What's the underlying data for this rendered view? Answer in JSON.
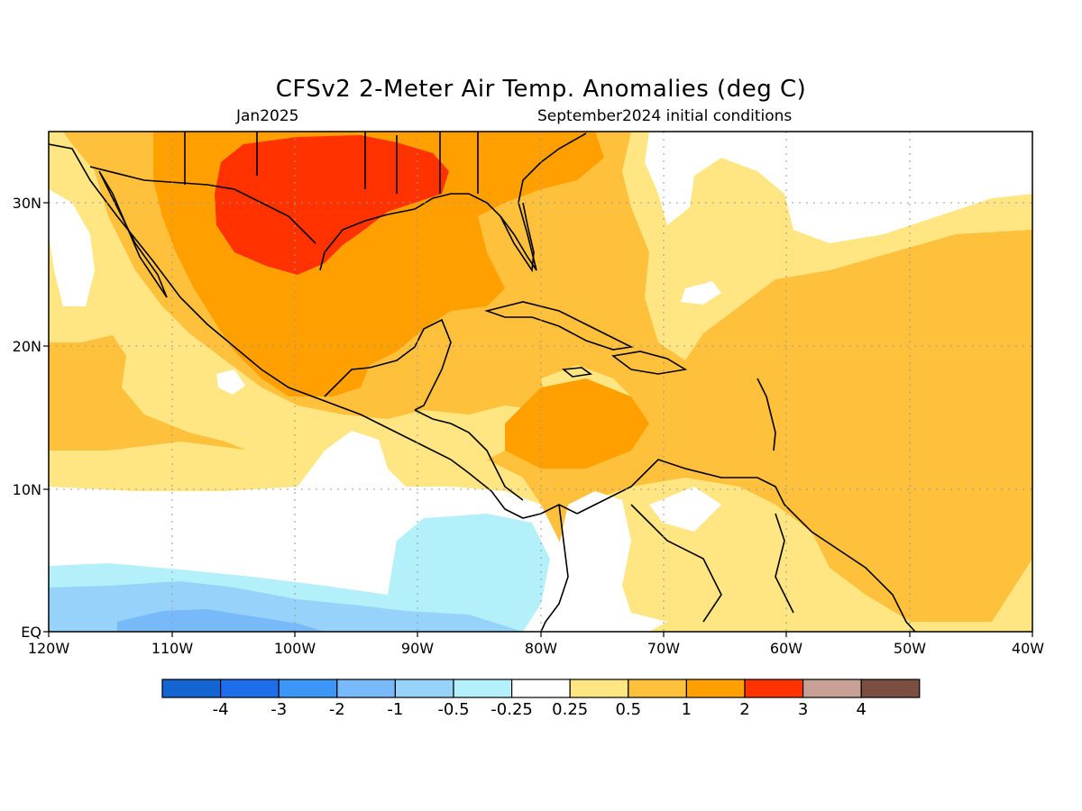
{
  "title": "CFSv2 2-Meter Air Temp. Anomalies (deg C)",
  "subtitle_left": "Jan2025",
  "subtitle_right": "September2024 initial conditions",
  "lat_labels": [
    "30N",
    "20N",
    "10N",
    "EQ"
  ],
  "lon_labels": [
    "120W",
    "110W",
    "100W",
    "90W",
    "80W",
    "70W",
    "60W",
    "50W",
    "40W"
  ],
  "colorbar": {
    "colors": [
      "#1464d2",
      "#1e6eeb",
      "#3c96f5",
      "#78b9fa",
      "#96d2fa",
      "#b4f0fa",
      "#ffffff",
      "#ffe682",
      "#ffc03c",
      "#ffa000",
      "#ff3200",
      "#c8a096",
      "#7a4e40"
    ],
    "labels": [
      "-4",
      "-3",
      "-2",
      "-1",
      "-0.5",
      "-0.25",
      "0.25",
      "0.5",
      "1",
      "2",
      "3",
      "4"
    ]
  },
  "anomaly_colors": {
    "neutral": "#ffffff",
    "warm_025": "#ffe682",
    "warm_05": "#ffc03c",
    "warm_1": "#ffa000",
    "warm_2": "#ff3200",
    "cool_025": "#b4f0fa",
    "cool_05": "#96d2fa",
    "cool_1": "#78b9fa"
  }
}
